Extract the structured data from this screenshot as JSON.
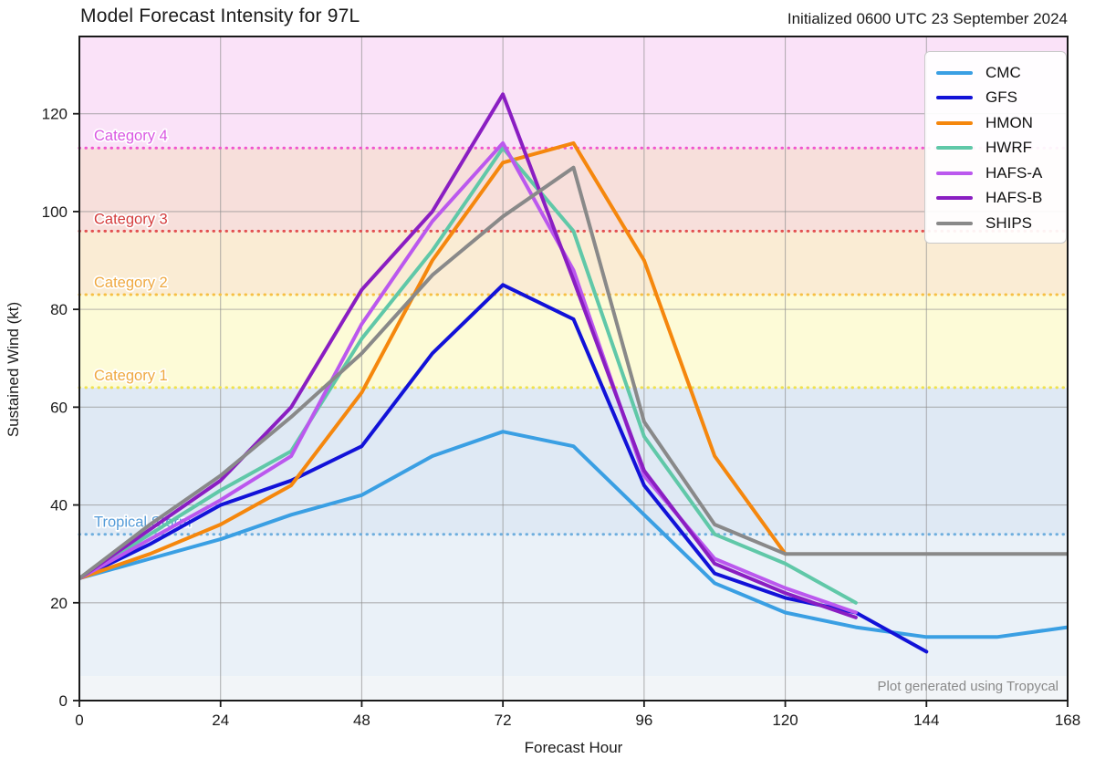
{
  "header": {
    "title": "Model Forecast Intensity for 97L",
    "initialized": "Initialized 0600 UTC 23 September 2024"
  },
  "footer": {
    "credit": "Plot generated using Tropycal"
  },
  "chart_data": {
    "type": "line",
    "title": "Model Forecast Intensity for 97L",
    "subtitle": "Initialized 0600 UTC 23 September 2024",
    "xlabel": "Forecast Hour",
    "ylabel": "Sustained Wind (kt)",
    "xlim": [
      0,
      168
    ],
    "ylim": [
      0,
      135.8
    ],
    "xticks": [
      0,
      24,
      48,
      72,
      96,
      120,
      144,
      168
    ],
    "yticks": [
      0,
      20,
      40,
      60,
      80,
      100,
      120
    ],
    "grid": true,
    "legend_position": "top-right",
    "series": [
      {
        "name": "CMC",
        "color": "#3A9FE3",
        "points": [
          [
            0,
            25
          ],
          [
            12,
            29
          ],
          [
            24,
            33
          ],
          [
            36,
            38
          ],
          [
            48,
            42
          ],
          [
            60,
            50
          ],
          [
            72,
            55
          ],
          [
            84,
            52
          ],
          [
            96,
            38
          ],
          [
            108,
            24
          ],
          [
            120,
            18
          ],
          [
            132,
            15
          ],
          [
            144,
            13
          ],
          [
            156,
            13
          ],
          [
            168,
            15
          ]
        ]
      },
      {
        "name": "GFS",
        "color": "#1212D8",
        "points": [
          [
            0,
            25
          ],
          [
            12,
            32
          ],
          [
            24,
            40
          ],
          [
            36,
            45
          ],
          [
            48,
            52
          ],
          [
            60,
            71
          ],
          [
            72,
            85
          ],
          [
            84,
            78
          ],
          [
            96,
            44
          ],
          [
            108,
            26
          ],
          [
            120,
            21
          ],
          [
            132,
            18
          ],
          [
            144,
            10
          ]
        ]
      },
      {
        "name": "HMON",
        "color": "#F5870D",
        "points": [
          [
            0,
            25
          ],
          [
            12,
            30
          ],
          [
            24,
            36
          ],
          [
            36,
            44
          ],
          [
            48,
            63
          ],
          [
            60,
            90
          ],
          [
            72,
            110
          ],
          [
            84,
            114
          ],
          [
            96,
            90
          ],
          [
            108,
            50
          ],
          [
            120,
            30
          ]
        ]
      },
      {
        "name": "HWRF",
        "color": "#60C8A8",
        "points": [
          [
            0,
            25
          ],
          [
            12,
            34
          ],
          [
            24,
            43
          ],
          [
            36,
            51
          ],
          [
            48,
            74
          ],
          [
            60,
            92
          ],
          [
            72,
            113
          ],
          [
            84,
            96
          ],
          [
            96,
            54
          ],
          [
            108,
            34
          ],
          [
            120,
            28
          ],
          [
            132,
            20
          ]
        ]
      },
      {
        "name": "HAFS-A",
        "color": "#BB58EE",
        "points": [
          [
            0,
            25
          ],
          [
            12,
            33
          ],
          [
            24,
            41
          ],
          [
            36,
            50
          ],
          [
            48,
            77
          ],
          [
            60,
            98
          ],
          [
            72,
            114
          ],
          [
            84,
            88
          ],
          [
            96,
            46
          ],
          [
            108,
            29
          ],
          [
            120,
            23
          ],
          [
            132,
            18
          ]
        ]
      },
      {
        "name": "HAFS-B",
        "color": "#8A1EC2",
        "points": [
          [
            0,
            25
          ],
          [
            12,
            35
          ],
          [
            24,
            45
          ],
          [
            36,
            60
          ],
          [
            48,
            84
          ],
          [
            60,
            100
          ],
          [
            72,
            124
          ],
          [
            84,
            86
          ],
          [
            96,
            47
          ],
          [
            108,
            28
          ],
          [
            120,
            22
          ],
          [
            132,
            17
          ]
        ]
      },
      {
        "name": "SHIPS",
        "color": "#898989",
        "points": [
          [
            0,
            25
          ],
          [
            12,
            36
          ],
          [
            24,
            46
          ],
          [
            36,
            58
          ],
          [
            48,
            71
          ],
          [
            60,
            87
          ],
          [
            72,
            99
          ],
          [
            84,
            109
          ],
          [
            96,
            57
          ],
          [
            108,
            36
          ],
          [
            120,
            30
          ],
          [
            168,
            30
          ]
        ]
      }
    ],
    "thresholds": [
      {
        "label": "Tropical Storm",
        "value": 34,
        "line_color": "#6FAEDE",
        "label_color": "#549BD8"
      },
      {
        "label": "Category 1",
        "value": 64,
        "line_color": "#EFE14E",
        "label_color": "#EFA83F"
      },
      {
        "label": "Category 2",
        "value": 83,
        "line_color": "#F6C044",
        "label_color": "#EFA83F"
      },
      {
        "label": "Category 3",
        "value": 96,
        "line_color": "#E25050",
        "label_color": "#D43C3C"
      },
      {
        "label": "Category 4",
        "value": 113,
        "line_color": "#F055CE",
        "label_color": "#D957E2"
      }
    ],
    "bands": [
      {
        "from": 0,
        "to": 5,
        "color": "#F2F5F8"
      },
      {
        "from": 5,
        "to": 34,
        "color": "#EAF1F8"
      },
      {
        "from": 34,
        "to": 64,
        "color": "#DFE9F4"
      },
      {
        "from": 64,
        "to": 83,
        "color": "#FDFBD7"
      },
      {
        "from": 83,
        "to": 96,
        "color": "#FAECD4"
      },
      {
        "from": 96,
        "to": 113,
        "color": "#F7DFDB"
      },
      {
        "from": 113,
        "to": 135.8,
        "color": "#FAE2F8"
      }
    ]
  }
}
